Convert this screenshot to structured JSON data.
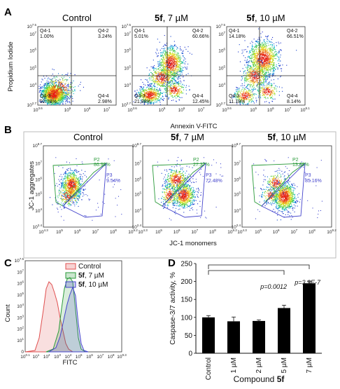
{
  "panels": {
    "A": {
      "letter": "A",
      "ylabel": "Propidium Iodide",
      "xlabel": "Annexin V-FITC",
      "y_ticks": [
        "10^2.7",
        "10^4",
        "10^5",
        "10^6",
        "10^7",
        "10^7.5"
      ],
      "x_ticks": [
        [
          "10^3.6",
          "10^5",
          "10^6",
          "10^7"
        ],
        [
          "10^3.6",
          "10^5",
          "10^6",
          "10^7"
        ],
        [
          "10^3.6",
          "10^5",
          "10^6",
          "10^7",
          "10^8.1"
        ]
      ],
      "plots": [
        {
          "title_bold": "",
          "title_rest": "Control",
          "q1": "Q4-1",
          "q1v": "1.00%",
          "q2": "Q4-2",
          "q2v": "3.24%",
          "q3": "Q4-3",
          "q3v": "92.78%",
          "q4": "Q4-4",
          "q4v": "2.98%"
        },
        {
          "title_bold": "5f",
          "title_rest": ", 7 µM",
          "q1": "Q4-1",
          "q1v": "5.01%",
          "q2": "Q4-2",
          "q2v": "60.66%",
          "q3": "Q4-3",
          "q3v": "21.88%",
          "q4": "Q4-4",
          "q4v": "12.45%"
        },
        {
          "title_bold": "5f",
          "title_rest": ", 10 µM",
          "q1": "Q4-1",
          "q1v": "14.18%",
          "q2": "Q4-2",
          "q2v": "66.51%",
          "q3": "Q4-3",
          "q3v": "11.18%",
          "q4": "Q4-4",
          "q4v": "8.14%"
        }
      ]
    },
    "B": {
      "letter": "B",
      "ylabel": "JC-1 aggregates",
      "xlabel": "JC-1 monomers",
      "y_ticks": [
        "10^2.4",
        "10^4",
        "10^5",
        "10^6",
        "10^7",
        "10^8.7"
      ],
      "x_ticks": [
        "10^4.3",
        "10^5",
        "10^6",
        "10^7",
        "10^8",
        "10^9.2"
      ],
      "plots": [
        {
          "title_bold": "",
          "title_rest": "Control",
          "p2": "P2",
          "p2v": "86.98%",
          "p3": "P3",
          "p3v": "9.54%"
        },
        {
          "title_bold": "5f",
          "title_rest": ", 7 µM",
          "p2": "P2",
          "p2v": "27.37%",
          "p3": "P3",
          "p3v": "72.48%"
        },
        {
          "title_bold": "5f",
          "title_rest": ", 10 µM",
          "p2": "P2",
          "p2v": "13.68%",
          "p3": "P3",
          "p3v": "85.16%"
        }
      ]
    },
    "C": {
      "letter": "C",
      "ylabel": "Count",
      "xlabel": "FITC",
      "x_ticks": [
        "10^0.1",
        "10^1",
        "10^2",
        "10^3",
        "10^4",
        "10^5",
        "10^6",
        "10^7",
        "10^8",
        "10^9.3"
      ],
      "y_ticks": [
        "0",
        "10^1",
        "10^2",
        "10^3",
        "10^4",
        "10^5",
        "10^6",
        "10^7",
        "10^7.5"
      ],
      "legend": [
        {
          "bold": "",
          "rest": "Control",
          "color": "#e05050"
        },
        {
          "bold": "5f",
          "rest": ", 7 µM",
          "color": "#2a9a3a"
        },
        {
          "bold": "5f",
          "rest": ", 10 µM",
          "color": "#4444cc"
        }
      ]
    },
    "D": {
      "letter": "D",
      "xlabel_rest": "Compound ",
      "xlabel_bold": "5f",
      "p_label_1": "p=0.0012",
      "p_label_2": "p=3.9E-7"
    }
  },
  "chart_data": {
    "type": "bar",
    "categories": [
      "Control",
      "1 µM",
      "2 µM",
      "5 µM",
      "7 µM"
    ],
    "values": [
      100,
      89,
      90,
      126,
      195
    ],
    "errors": [
      5,
      12,
      3,
      8,
      6
    ],
    "ylabel": "Caspase-3/7 activity, %",
    "xlabel": "Compound 5f",
    "ylim": [
      0,
      250
    ],
    "yticks": [
      0,
      50,
      100,
      150,
      200,
      250
    ],
    "bar_color": "#000000"
  }
}
